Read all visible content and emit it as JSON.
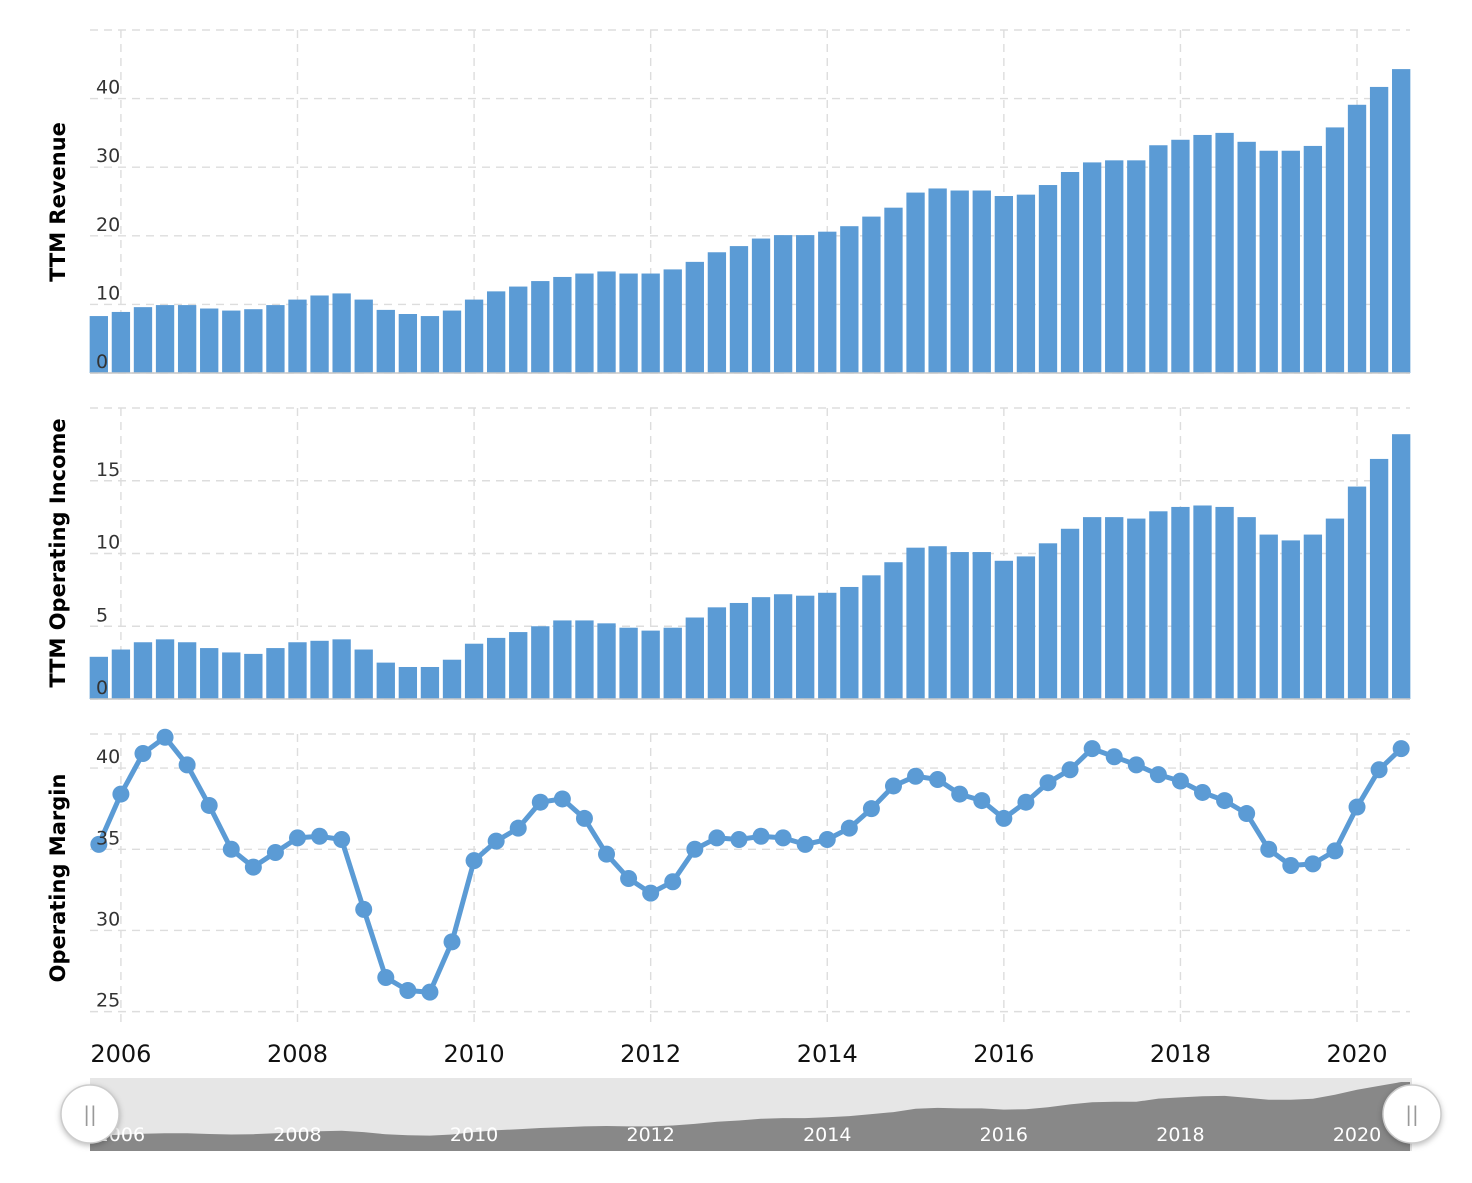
{
  "colors": {
    "series": "#5b9bd5",
    "navigator_bg": "#e6e6e6",
    "navigator_area": "#888888",
    "handle_fill": "#ffffff",
    "handle_stroke": "#cccccc"
  },
  "x_axis": {
    "ticks": [
      "2006",
      "2008",
      "2010",
      "2012",
      "2014",
      "2016",
      "2018",
      "2020"
    ],
    "range": [
      2005.65,
      2020.6
    ]
  },
  "navigator": {
    "ticks": [
      "2006",
      "2008",
      "2010",
      "2012",
      "2014",
      "2016",
      "2018",
      "2020"
    ],
    "left_handle_glyph": "||",
    "right_handle_glyph": "||",
    "left_handle_icon": "drag-handle-icon",
    "right_handle_icon": "drag-handle-icon"
  },
  "chart_data": [
    {
      "type": "bar",
      "ylabel": "TTM Revenue",
      "yticks": [
        "0",
        "10",
        "20",
        "30",
        "40"
      ],
      "ylim": [
        0,
        50
      ],
      "x_start": 2005.75,
      "x_step": 0.25,
      "values": [
        8.3,
        8.9,
        9.6,
        9.9,
        9.9,
        9.4,
        9.1,
        9.3,
        9.9,
        10.7,
        11.3,
        11.6,
        10.7,
        9.2,
        8.6,
        8.3,
        9.1,
        10.7,
        11.9,
        12.6,
        13.4,
        14.0,
        14.5,
        14.8,
        14.5,
        14.5,
        15.1,
        16.2,
        17.6,
        18.5,
        19.6,
        20.1,
        20.1,
        20.6,
        21.4,
        22.8,
        24.1,
        26.3,
        26.9,
        26.6,
        26.6,
        25.8,
        26.0,
        27.4,
        29.3,
        30.7,
        31.0,
        31.0,
        33.2,
        34.0,
        34.7,
        35.0,
        33.7,
        32.4,
        32.4,
        33.1,
        35.8,
        39.1,
        41.7,
        44.3
      ]
    },
    {
      "type": "bar",
      "ylabel": "TTM Operating Income",
      "yticks": [
        "0",
        "5",
        "10",
        "15"
      ],
      "ylim": [
        0,
        20
      ],
      "x_start": 2005.75,
      "x_step": 0.25,
      "values": [
        2.9,
        3.4,
        3.9,
        4.1,
        3.9,
        3.5,
        3.2,
        3.1,
        3.5,
        3.9,
        4.0,
        4.1,
        3.4,
        2.5,
        2.2,
        2.2,
        2.7,
        3.8,
        4.2,
        4.6,
        5.0,
        5.4,
        5.4,
        5.2,
        4.9,
        4.7,
        4.9,
        5.6,
        6.3,
        6.6,
        7.0,
        7.2,
        7.1,
        7.3,
        7.7,
        8.5,
        9.4,
        10.4,
        10.5,
        10.1,
        10.1,
        9.5,
        9.8,
        10.7,
        11.7,
        12.5,
        12.5,
        12.4,
        12.9,
        13.2,
        13.3,
        13.2,
        12.5,
        11.3,
        10.9,
        11.3,
        12.4,
        14.6,
        16.5,
        18.2
      ]
    },
    {
      "type": "line",
      "ylabel": "Operating Margin",
      "yticks": [
        "25",
        "30",
        "35",
        "40"
      ],
      "ylim": [
        24.3,
        42.1
      ],
      "x_start": 2005.75,
      "x_step": 0.25,
      "values": [
        35.3,
        38.4,
        40.9,
        41.9,
        40.2,
        37.7,
        35.0,
        33.9,
        34.8,
        35.7,
        35.8,
        35.6,
        31.3,
        27.1,
        26.3,
        26.2,
        29.3,
        34.3,
        35.5,
        36.3,
        37.9,
        38.1,
        36.9,
        34.7,
        33.2,
        32.3,
        33.0,
        35.0,
        35.7,
        35.6,
        35.8,
        35.7,
        35.3,
        35.6,
        36.3,
        37.5,
        38.9,
        39.5,
        39.3,
        38.4,
        38.0,
        36.9,
        37.9,
        39.1,
        39.9,
        41.2,
        40.7,
        40.2,
        39.6,
        39.2,
        38.5,
        38.0,
        37.2,
        35.0,
        34.0,
        34.1,
        34.9,
        37.6,
        39.9,
        41.2
      ]
    }
  ]
}
